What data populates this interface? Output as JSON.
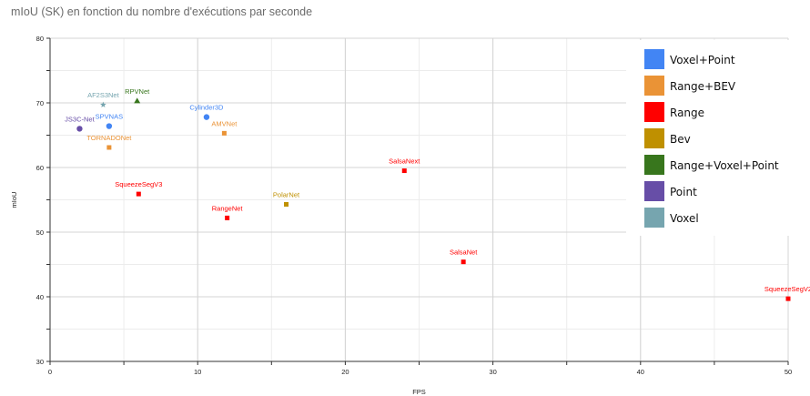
{
  "chart_data": {
    "type": "scatter",
    "title": "mIoU (SK) en fonction du nombre d'exécutions par seconde",
    "xlabel": "FPS",
    "ylabel": "mIoU",
    "xlim": [
      0,
      50
    ],
    "ylim": [
      30,
      80
    ],
    "x_ticks": [
      "0",
      "10",
      "20",
      "30",
      "40",
      "50"
    ],
    "y_ticks": [
      "30",
      "40",
      "50",
      "60",
      "70",
      "80"
    ],
    "grid": true,
    "legend_position": "top-right",
    "legend": [
      {
        "label": "Voxel+Point",
        "color": "#4285f4"
      },
      {
        "label": "Range+BEV",
        "color": "#ea9336"
      },
      {
        "label": "Range",
        "color": "#ff0000"
      },
      {
        "label": "Bev",
        "color": "#bf9000"
      },
      {
        "label": "Range+Voxel+Point",
        "color": "#38761d"
      },
      {
        "label": "Point",
        "color": "#674ea7"
      },
      {
        "label": "Voxel",
        "color": "#76a5af"
      }
    ],
    "points": [
      {
        "label": "AF2S3Net",
        "x": 3.6,
        "y": 69.7,
        "category": "Voxel",
        "color": "#76a5af",
        "marker": "star"
      },
      {
        "label": "RPVNet",
        "x": 5.9,
        "y": 70.3,
        "category": "Range+Voxel+Point",
        "color": "#38761d",
        "marker": "triangle"
      },
      {
        "label": "JS3C-Net",
        "x": 2.0,
        "y": 66.0,
        "category": "Point",
        "color": "#674ea7",
        "marker": "circle"
      },
      {
        "label": "SPVNAS",
        "x": 4.0,
        "y": 66.4,
        "category": "Voxel+Point",
        "color": "#4285f4",
        "marker": "circle"
      },
      {
        "label": "Cylinder3D",
        "x": 10.6,
        "y": 67.8,
        "category": "Voxel+Point",
        "color": "#4285f4",
        "marker": "circle"
      },
      {
        "label": "AMVNet",
        "x": 11.8,
        "y": 65.3,
        "category": "Range+BEV",
        "color": "#ea9336",
        "marker": "square"
      },
      {
        "label": "TORNADONet",
        "x": 4.0,
        "y": 63.1,
        "category": "Range+BEV",
        "color": "#ea9336",
        "marker": "square"
      },
      {
        "label": "SalsaNext",
        "x": 24.0,
        "y": 59.5,
        "category": "Range",
        "color": "#ff0000",
        "marker": "square"
      },
      {
        "label": "SqueezeSegV3",
        "x": 6.0,
        "y": 55.9,
        "category": "Range",
        "color": "#ff0000",
        "marker": "square"
      },
      {
        "label": "PolarNet",
        "x": 16.0,
        "y": 54.3,
        "category": "Bev",
        "color": "#bf9000",
        "marker": "square"
      },
      {
        "label": "RangeNet",
        "x": 12.0,
        "y": 52.2,
        "category": "Range",
        "color": "#ff0000",
        "marker": "square"
      },
      {
        "label": "SalsaNet",
        "x": 28.0,
        "y": 45.4,
        "category": "Range",
        "color": "#ff0000",
        "marker": "square"
      },
      {
        "label": "SqueezeSegV2",
        "x": 50.0,
        "y": 39.7,
        "category": "Range",
        "color": "#ff0000",
        "marker": "square"
      }
    ]
  }
}
